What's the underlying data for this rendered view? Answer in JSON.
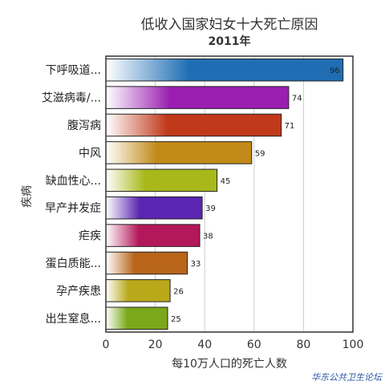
{
  "chart_data": {
    "type": "bar",
    "orientation": "horizontal",
    "title": "低收入国家妇女十大死亡原因",
    "subtitle": "2011年",
    "xlabel": "每10万人口的死亡人数",
    "ylabel": "疾病",
    "xlim": [
      0,
      100
    ],
    "xticks": [
      0,
      20,
      40,
      60,
      80,
      100
    ],
    "grid": true,
    "categories": [
      "下呼吸道...",
      "艾滋病毒/...",
      "腹泻病",
      "中风",
      "缺血性心...",
      "早产并发症",
      "疟疾",
      "蛋白质能...",
      "孕产疾患",
      "出生窒息..."
    ],
    "values": [
      96,
      74,
      71,
      59,
      45,
      39,
      38,
      33,
      26,
      25
    ],
    "colors": [
      "#1f6eb4",
      "#9a1fb0",
      "#c0391a",
      "#c28a18",
      "#a8b81a",
      "#5a25b0",
      "#b3185a",
      "#b8651a",
      "#b8a81a",
      "#7aa81a"
    ]
  },
  "watermark": "华东公共卫生论坛"
}
